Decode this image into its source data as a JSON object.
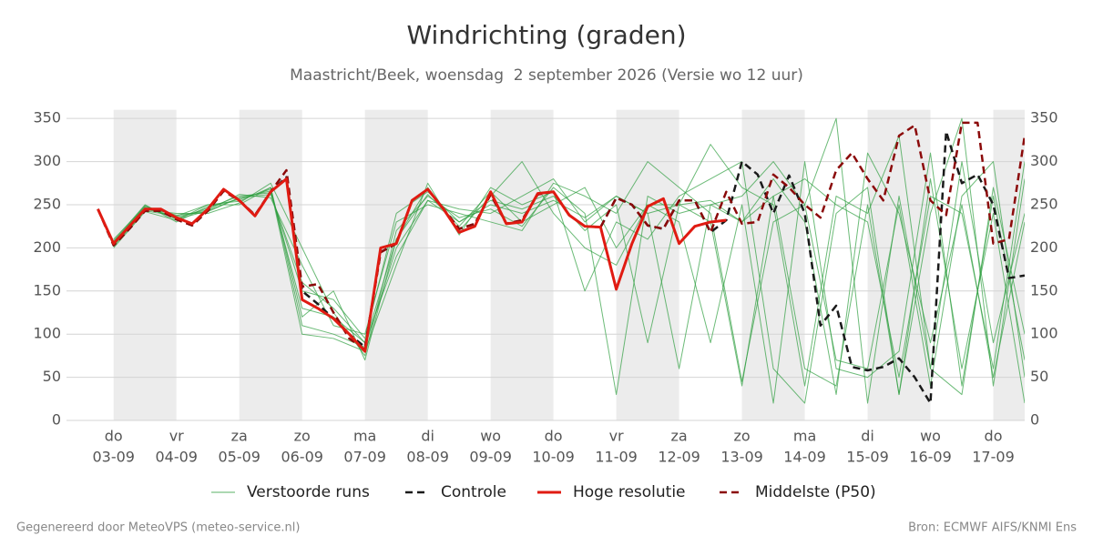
{
  "chart_data": {
    "type": "line",
    "title": "Windrichting (graden)",
    "subtitle": "Maastricht/Beek, woensdag  2 september 2026 (Versie wo 12 uur)",
    "footer_left": "Gegenereerd door MeteoVPS (meteo-service.nl)",
    "footer_right": "Bron: ECMWF AIFS/KNMI Ens",
    "xlim": [
      -0.75,
      14.5
    ],
    "xticks": [
      {
        "value": 0,
        "label": "do",
        "date": "03-09"
      },
      {
        "value": 1,
        "label": "vr",
        "date": "04-09"
      },
      {
        "value": 2,
        "label": "za",
        "date": "05-09"
      },
      {
        "value": 3,
        "label": "zo",
        "date": "06-09"
      },
      {
        "value": 4,
        "label": "ma",
        "date": "07-09"
      },
      {
        "value": 5,
        "label": "di",
        "date": "08-09"
      },
      {
        "value": 6,
        "label": "wo",
        "date": "09-09"
      },
      {
        "value": 7,
        "label": "do",
        "date": "10-09"
      },
      {
        "value": 8,
        "label": "vr",
        "date": "11-09"
      },
      {
        "value": 9,
        "label": "za",
        "date": "12-09"
      },
      {
        "value": 10,
        "label": "zo",
        "date": "13-09"
      },
      {
        "value": 11,
        "label": "ma",
        "date": "14-09"
      },
      {
        "value": 12,
        "label": "di",
        "date": "15-09"
      },
      {
        "value": 13,
        "label": "wo",
        "date": "16-09"
      },
      {
        "value": 14,
        "label": "do",
        "date": "17-09"
      }
    ],
    "ylim": [
      0,
      360
    ],
    "yticks": [
      0,
      50,
      100,
      150,
      200,
      250,
      300,
      350
    ],
    "grid": true,
    "ensemble": {
      "name": "Verstoorde runs",
      "color": "#2e9e3e",
      "x": [
        0,
        0.5,
        1,
        1.5,
        2,
        2.5,
        3,
        3.5,
        4,
        4.5,
        5,
        5.5,
        6,
        6.5,
        7,
        7.5,
        8,
        8.5,
        9,
        9.5,
        10,
        10.5,
        11,
        11.5,
        12,
        12.5,
        13,
        13.5,
        14,
        14.5
      ],
      "runs": [
        [
          210,
          248,
          238,
          242,
          258,
          262,
          160,
          130,
          90,
          190,
          255,
          230,
          250,
          240,
          255,
          235,
          260,
          240,
          250,
          255,
          230,
          260,
          60,
          40,
          250,
          30,
          280,
          60,
          240,
          20
        ],
        [
          200,
          242,
          232,
          250,
          250,
          270,
          120,
          150,
          70,
          210,
          270,
          220,
          260,
          300,
          240,
          200,
          180,
          250,
          230,
          90,
          250,
          20,
          300,
          60,
          50,
          80,
          310,
          40,
          260,
          70
        ],
        [
          205,
          246,
          236,
          244,
          262,
          258,
          180,
          110,
          100,
          230,
          250,
          240,
          230,
          220,
          275,
          260,
          240,
          300,
          270,
          240,
          45,
          230,
          250,
          350,
          20,
          260,
          60,
          300,
          90,
          240
        ],
        [
          208,
          250,
          230,
          248,
          256,
          268,
          100,
          95,
          80,
          180,
          275,
          215,
          270,
          250,
          265,
          150,
          230,
          210,
          260,
          280,
          300,
          60,
          20,
          240,
          270,
          30,
          240,
          350,
          40,
          280
        ],
        [
          203,
          244,
          240,
          240,
          252,
          275,
          200,
          125,
          75,
          220,
          260,
          235,
          245,
          225,
          270,
          240,
          30,
          260,
          240,
          250,
          230,
          280,
          230,
          30,
          310,
          240,
          90,
          250,
          50,
          230
        ],
        [
          207,
          247,
          234,
          246,
          260,
          264,
          150,
          140,
          95,
          240,
          265,
          230,
          255,
          245,
          260,
          220,
          250,
          90,
          250,
          320,
          270,
          250,
          40,
          260,
          240,
          330,
          60,
          30,
          270,
          100
        ],
        [
          202,
          243,
          237,
          250,
          254,
          270,
          110,
          100,
          85,
          200,
          255,
          245,
          240,
          260,
          280,
          230,
          260,
          240,
          60,
          250,
          260,
          300,
          250,
          70,
          60,
          250,
          40,
          260,
          300,
          50
        ],
        [
          206,
          249,
          233,
          243,
          258,
          266,
          130,
          120,
          90,
          210,
          262,
          225,
          265,
          230,
          250,
          270,
          200,
          250,
          250,
          230,
          40,
          260,
          280,
          250,
          230,
          50,
          260,
          240,
          60,
          300
        ]
      ]
    },
    "series": [
      {
        "name": "Controle",
        "color": "#1a1a1a",
        "dashed": true,
        "x": [
          -0.25,
          0,
          0.25,
          0.5,
          0.75,
          1,
          1.25,
          1.5,
          1.75,
          2,
          2.25,
          2.5,
          2.75,
          3,
          3.25,
          3.5,
          3.75,
          4,
          4.25,
          4.5,
          4.75,
          5,
          5.25,
          5.5,
          5.75,
          6,
          6.25,
          6.5,
          6.75,
          7,
          7.25,
          7.5,
          7.75,
          8,
          8.25,
          8.5,
          8.75,
          9,
          9.25,
          9.5,
          9.75,
          10,
          10.25,
          10.5,
          10.75,
          11,
          11.25,
          11.5,
          11.75,
          12,
          12.25,
          12.5,
          12.75,
          13,
          13.25,
          13.5,
          13.75,
          14,
          14.25,
          14.5
        ],
        "values": [
          245,
          203,
          222,
          243,
          243,
          233,
          226,
          243,
          266,
          255,
          238,
          265,
          282,
          150,
          135,
          118,
          100,
          85,
          195,
          205,
          255,
          268,
          245,
          222,
          228,
          262,
          228,
          232,
          262,
          265,
          238,
          225,
          224,
          258,
          250,
          226,
          222,
          255,
          255,
          218,
          232,
          300,
          285,
          240,
          284,
          240,
          110,
          133,
          62,
          58,
          62,
          72,
          50,
          20,
          335,
          275,
          285,
          250,
          165,
          168
        ]
      },
      {
        "name": "Hoge resolutie",
        "color": "#e01b12",
        "dashed": false,
        "x": [
          -0.25,
          0,
          0.25,
          0.5,
          0.75,
          1,
          1.25,
          1.5,
          1.75,
          2,
          2.25,
          2.5,
          2.75,
          3,
          3.25,
          3.5,
          3.75,
          4,
          4.25,
          4.5,
          4.75,
          5,
          5.25,
          5.5,
          5.75,
          6,
          6.25,
          6.5,
          6.75,
          7,
          7.25,
          7.5,
          7.75,
          8,
          8.25,
          8.5,
          8.75,
          9,
          9.25,
          9.5,
          9.75
        ],
        "values": [
          245,
          205,
          225,
          245,
          245,
          235,
          228,
          245,
          268,
          255,
          237,
          265,
          280,
          140,
          130,
          118,
          100,
          80,
          200,
          205,
          255,
          268,
          245,
          218,
          225,
          265,
          228,
          230,
          263,
          265,
          238,
          225,
          224,
          152,
          205,
          248,
          257,
          205,
          225,
          230,
          232
        ]
      },
      {
        "name": "Middelste (P50)",
        "color": "#8b0a0a",
        "dashed": true,
        "x": [
          -0.25,
          0,
          0.25,
          0.5,
          0.75,
          1,
          1.25,
          1.5,
          1.75,
          2,
          2.25,
          2.5,
          2.75,
          3,
          3.25,
          3.5,
          3.75,
          4,
          4.25,
          4.5,
          4.75,
          5,
          5.25,
          5.5,
          5.75,
          6,
          6.25,
          6.5,
          6.75,
          7,
          7.25,
          7.5,
          7.75,
          8,
          8.25,
          8.5,
          8.75,
          9,
          9.25,
          9.5,
          9.75,
          10,
          10.25,
          10.5,
          10.75,
          11,
          11.25,
          11.5,
          11.75,
          12,
          12.25,
          12.5,
          12.75,
          13,
          13.25,
          13.5,
          13.75,
          14,
          14.25,
          14.5
        ],
        "values": [
          245,
          203,
          222,
          243,
          243,
          233,
          226,
          243,
          266,
          255,
          238,
          265,
          290,
          155,
          158,
          125,
          95,
          82,
          195,
          205,
          255,
          268,
          245,
          222,
          228,
          262,
          228,
          232,
          262,
          265,
          238,
          225,
          224,
          258,
          250,
          226,
          222,
          255,
          255,
          218,
          265,
          228,
          230,
          285,
          270,
          250,
          235,
          290,
          310,
          280,
          255,
          330,
          342,
          255,
          238,
          345,
          345,
          205,
          210,
          330
        ]
      }
    ]
  }
}
